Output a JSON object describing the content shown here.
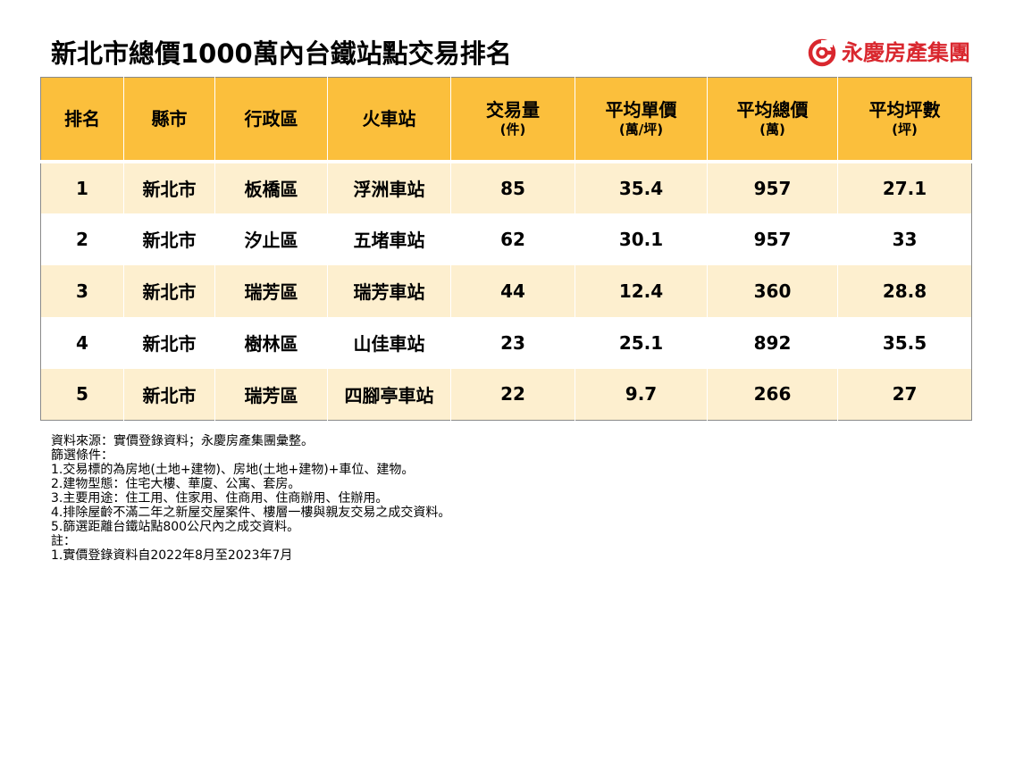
{
  "title": "新北市總價1000萬內台鐵站點交易排名",
  "brand": {
    "name": "永慶房產集團",
    "icon": "yungching-logo-icon",
    "color": "#d9272e"
  },
  "table": {
    "header_color": "#fbbf3c",
    "stripe_color": "#fdefcf",
    "columns": [
      {
        "label": "排名",
        "unit": ""
      },
      {
        "label": "縣市",
        "unit": ""
      },
      {
        "label": "行政區",
        "unit": ""
      },
      {
        "label": "火車站",
        "unit": ""
      },
      {
        "label": "交易量",
        "unit": "(件)"
      },
      {
        "label": "平均單價",
        "unit": "(萬/坪)"
      },
      {
        "label": "平均總價",
        "unit": "(萬)"
      },
      {
        "label": "平均坪數",
        "unit": "(坪)"
      }
    ],
    "rows": [
      [
        "1",
        "新北市",
        "板橋區",
        "浮洲車站",
        "85",
        "35.4",
        "957",
        "27.1"
      ],
      [
        "2",
        "新北市",
        "汐止區",
        "五堵車站",
        "62",
        "30.1",
        "957",
        "33"
      ],
      [
        "3",
        "新北市",
        "瑞芳區",
        "瑞芳車站",
        "44",
        "12.4",
        "360",
        "28.8"
      ],
      [
        "4",
        "新北市",
        "樹林區",
        "山佳車站",
        "23",
        "25.1",
        "892",
        "35.5"
      ],
      [
        "5",
        "新北市",
        "瑞芳區",
        "四腳亭車站",
        "22",
        "9.7",
        "266",
        "27"
      ]
    ]
  },
  "notes": [
    "資料來源：實價登錄資料；永慶房產集團彙整。",
    "篩選條件：",
    "1.交易標的為房地(土地+建物)、房地(土地+建物)+車位、建物。",
    "2.建物型態：住宅大樓、華廈、公寓、套房。",
    "3.主要用途：住工用、住家用、住商用、住商辦用、住辦用。",
    "4.排除屋齡不滿二年之新屋交屋案件、樓層一樓與親友交易之成交資料。",
    "5.篩選距離台鐵站點800公尺內之成交資料。",
    "註：",
    "1.實價登錄資料自2022年8月至2023年7月"
  ]
}
